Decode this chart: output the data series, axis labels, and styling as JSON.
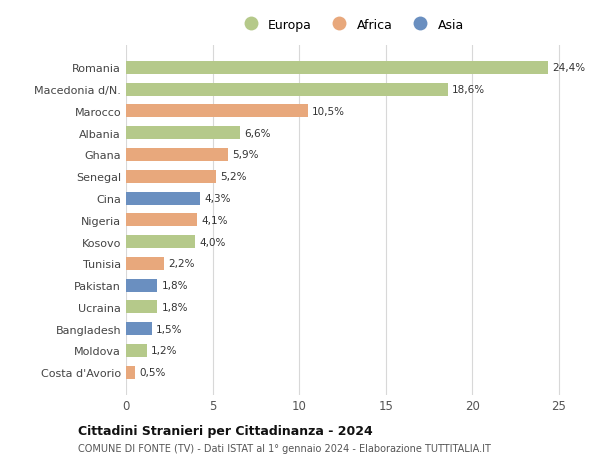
{
  "categories": [
    "Romania",
    "Macedonia d/N.",
    "Marocco",
    "Albania",
    "Ghana",
    "Senegal",
    "Cina",
    "Nigeria",
    "Kosovo",
    "Tunisia",
    "Pakistan",
    "Ucraina",
    "Bangladesh",
    "Moldova",
    "Costa d'Avorio"
  ],
  "values": [
    24.4,
    18.6,
    10.5,
    6.6,
    5.9,
    5.2,
    4.3,
    4.1,
    4.0,
    2.2,
    1.8,
    1.8,
    1.5,
    1.2,
    0.5
  ],
  "labels": [
    "24,4%",
    "18,6%",
    "10,5%",
    "6,6%",
    "5,9%",
    "5,2%",
    "4,3%",
    "4,1%",
    "4,0%",
    "2,2%",
    "1,8%",
    "1,8%",
    "1,5%",
    "1,2%",
    "0,5%"
  ],
  "continents": [
    "Europa",
    "Europa",
    "Africa",
    "Europa",
    "Africa",
    "Africa",
    "Asia",
    "Africa",
    "Europa",
    "Africa",
    "Asia",
    "Europa",
    "Asia",
    "Europa",
    "Africa"
  ],
  "colors": {
    "Europa": "#b5c98a",
    "Africa": "#e8a87c",
    "Asia": "#6a8fc0"
  },
  "legend_order": [
    "Europa",
    "Africa",
    "Asia"
  ],
  "xlim": [
    0,
    26
  ],
  "xticks": [
    0,
    5,
    10,
    15,
    20,
    25
  ],
  "title": "Cittadini Stranieri per Cittadinanza - 2024",
  "subtitle": "COMUNE DI FONTE (TV) - Dati ISTAT al 1° gennaio 2024 - Elaborazione TUTTITALIA.IT",
  "background_color": "#ffffff",
  "grid_color": "#d8d8d8",
  "bar_height": 0.6
}
